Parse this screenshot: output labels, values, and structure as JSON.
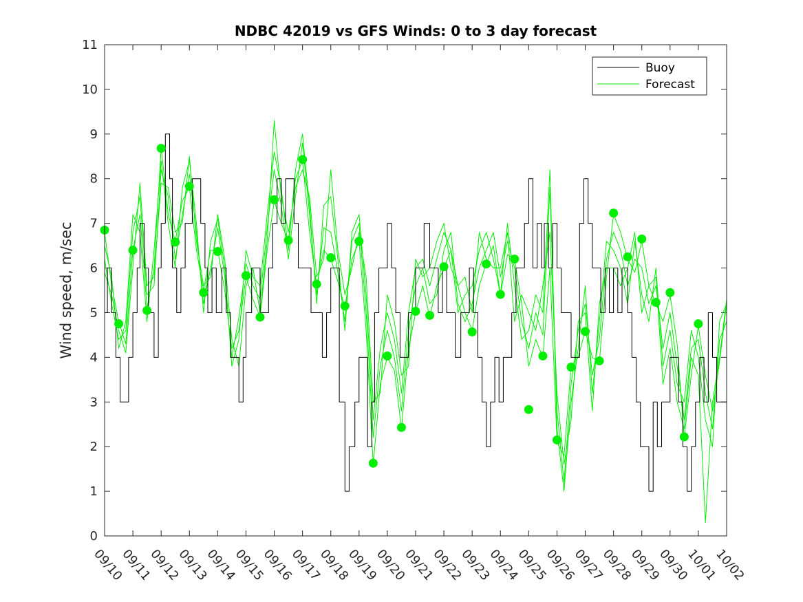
{
  "chart_data": {
    "type": "line",
    "title": "NDBC 42019 vs GFS Winds: 0 to 3 day forecast",
    "xlabel": "",
    "ylabel": "Wind speed, m/sec",
    "xlim": [
      0,
      22
    ],
    "ylim": [
      0,
      11
    ],
    "yticks": [
      0,
      1,
      2,
      3,
      4,
      5,
      6,
      7,
      8,
      9,
      10,
      11
    ],
    "xtick_labels": [
      "09/10",
      "09/11",
      "09/12",
      "09/13",
      "09/14",
      "09/15",
      "09/16",
      "09/17",
      "09/18",
      "09/19",
      "09/20",
      "09/21",
      "09/22",
      "09/23",
      "09/24",
      "09/25",
      "09/26",
      "09/27",
      "09/28",
      "09/29",
      "09/30",
      "10/01",
      "10/02"
    ],
    "legend": {
      "location": "top-right",
      "entries": [
        {
          "label": "Buoy",
          "color": "#000000"
        },
        {
          "label": "Forecast",
          "color": "#00ee00"
        }
      ]
    },
    "series": [
      {
        "name": "Buoy",
        "type": "step",
        "color": "#000000",
        "x": [
          0,
          0.1,
          0.25,
          0.4,
          0.55,
          0.7,
          0.85,
          1.0,
          1.15,
          1.25,
          1.4,
          1.55,
          1.75,
          1.9,
          2.0,
          2.15,
          2.3,
          2.4,
          2.55,
          2.7,
          2.85,
          3.0,
          3.1,
          3.25,
          3.4,
          3.55,
          3.65,
          3.8,
          3.95,
          4.15,
          4.3,
          4.45,
          4.6,
          4.75,
          4.9,
          5.0,
          5.2,
          5.35,
          5.5,
          5.65,
          5.8,
          5.95,
          6.1,
          6.25,
          6.4,
          6.55,
          6.7,
          6.85,
          7.0,
          7.15,
          7.3,
          7.45,
          7.55,
          7.7,
          7.85,
          8.0,
          8.15,
          8.3,
          8.5,
          8.65,
          8.85,
          9.0,
          9.15,
          9.3,
          9.45,
          9.55,
          9.7,
          9.85,
          10.0,
          10.15,
          10.3,
          10.45,
          10.6,
          10.75,
          10.9,
          11.0,
          11.15,
          11.3,
          11.5,
          11.65,
          11.8,
          11.95,
          12.1,
          12.25,
          12.4,
          12.6,
          12.75,
          12.9,
          13.05,
          13.2,
          13.35,
          13.5,
          13.65,
          13.8,
          13.95,
          14.1,
          14.25,
          14.4,
          14.55,
          14.7,
          14.85,
          15.0,
          15.15,
          15.3,
          15.45,
          15.55,
          15.7,
          15.85,
          16.0,
          16.15,
          16.3,
          16.5,
          16.65,
          16.8,
          16.95,
          17.1,
          17.25,
          17.4,
          17.55,
          17.7,
          17.85,
          18.0,
          18.15,
          18.3,
          18.5,
          18.65,
          18.8,
          18.95,
          19.1,
          19.25,
          19.4,
          19.55,
          19.7,
          19.85,
          20.0,
          20.15,
          20.3,
          20.45,
          20.6,
          20.75,
          20.9,
          21.05,
          21.2,
          21.35,
          21.5,
          21.65,
          21.8,
          22.0
        ],
        "y": [
          5,
          6,
          5,
          4,
          3,
          3,
          4,
          5,
          6,
          7,
          6,
          5,
          4,
          6,
          7,
          9,
          8,
          6,
          5,
          6,
          7,
          7,
          8,
          8,
          7,
          6,
          5,
          6,
          5,
          6,
          5,
          4,
          4,
          3,
          4,
          5,
          6,
          6,
          5,
          5,
          6,
          7,
          8,
          7,
          8,
          8,
          7,
          6,
          6,
          6,
          5,
          5,
          5,
          4,
          5,
          6,
          6,
          3,
          1,
          2,
          3,
          4,
          4,
          2,
          3,
          5,
          6,
          6,
          7,
          6,
          5,
          4,
          4,
          5,
          5,
          6,
          6,
          7,
          6,
          6,
          5,
          6,
          5,
          5,
          4,
          5,
          5,
          6,
          5,
          4,
          3,
          2,
          3,
          4,
          3,
          4,
          4,
          5,
          6,
          6,
          7,
          8,
          6,
          7,
          6,
          7,
          6,
          7,
          6,
          5,
          5,
          4,
          4,
          7,
          8,
          7,
          6,
          6,
          5,
          6,
          5,
          6,
          5,
          6,
          5,
          4,
          3,
          2,
          2,
          1,
          3,
          2,
          3,
          3,
          4,
          4,
          3,
          2,
          1,
          2,
          3,
          4,
          3,
          5,
          4,
          3,
          3,
          3
        ]
      },
      {
        "name": "Forecast (day 0)",
        "color": "#00ee00",
        "x": [
          0,
          0.25,
          0.5,
          0.75,
          1.0,
          1.25,
          1.5,
          1.75,
          2.0,
          2.25,
          2.5,
          2.75,
          3.0,
          3.25,
          3.5,
          3.75,
          4.0,
          4.25,
          4.5,
          4.75,
          5.0,
          5.25,
          5.5,
          5.75,
          6.0,
          6.25,
          6.5,
          6.75,
          7.0,
          7.25,
          7.5,
          7.75,
          8.0,
          8.25,
          8.5,
          8.75,
          9.0,
          9.25,
          9.5,
          9.75,
          10.0,
          10.25,
          10.5,
          10.75,
          11.0,
          11.25,
          11.5,
          11.75,
          12.0,
          12.25,
          12.5,
          12.75,
          13.0,
          13.25,
          13.5,
          13.75,
          14.0,
          14.25,
          14.5,
          14.75,
          15.0,
          15.25,
          15.5,
          15.75,
          16.0,
          16.25,
          16.5,
          16.75,
          17.0,
          17.25,
          17.5,
          17.75,
          18.0,
          18.25,
          18.5,
          18.75,
          19.0,
          19.25,
          19.5,
          19.75,
          20.0,
          20.25,
          20.5,
          20.75,
          21.0,
          21.25,
          21.5,
          21.75,
          22.0
        ],
        "y": [
          6.8,
          5.6,
          4.8,
          4.3,
          6.4,
          7.2,
          5.1,
          6.0,
          8.7,
          7.2,
          6.6,
          7.5,
          7.8,
          6.4,
          5.5,
          6.4,
          6.4,
          5.5,
          4.2,
          4.6,
          5.8,
          5.3,
          4.9,
          6.4,
          7.5,
          7.0,
          6.6,
          8.0,
          8.4,
          6.8,
          5.6,
          6.4,
          6.2,
          5.7,
          5.1,
          6.2,
          6.6,
          4.6,
          1.6,
          3.4,
          4.0,
          3.7,
          2.4,
          4.2,
          5.0,
          5.6,
          4.9,
          5.6,
          6.0,
          6.4,
          5.6,
          5.0,
          4.6,
          5.6,
          6.1,
          6.5,
          5.4,
          6.3,
          6.2,
          5.2,
          3.8,
          4.4,
          4.0,
          6.0,
          2.1,
          1.8,
          3.8,
          4.0,
          4.6,
          4.0,
          3.9,
          5.8,
          7.2,
          6.8,
          6.2,
          5.9,
          6.6,
          5.6,
          5.2,
          4.8,
          5.4,
          4.3,
          2.2,
          3.6,
          4.7,
          3.6,
          2.8,
          3.9,
          5.2
        ]
      },
      {
        "name": "Forecast (day 1)",
        "color": "#00ee00",
        "x": [
          0,
          0.25,
          0.5,
          0.75,
          1.0,
          1.25,
          1.5,
          1.75,
          2.0,
          2.25,
          2.5,
          2.75,
          3.0,
          3.25,
          3.5,
          3.75,
          4.0,
          4.25,
          4.5,
          4.75,
          5.0,
          5.25,
          5.5,
          5.75,
          6.0,
          6.25,
          6.5,
          6.75,
          7.0,
          7.25,
          7.5,
          7.75,
          8.0,
          8.25,
          8.5,
          8.75,
          9.0,
          9.25,
          9.5,
          9.75,
          10.0,
          10.25,
          10.5,
          10.75,
          11.0,
          11.25,
          11.5,
          11.75,
          12.0,
          12.25,
          12.5,
          12.75,
          13.0,
          13.25,
          13.5,
          13.75,
          14.0,
          14.25,
          14.5,
          14.75,
          15.0,
          15.25,
          15.5,
          15.75,
          16.0,
          16.25,
          16.5,
          16.75,
          17.0,
          17.25,
          17.5,
          17.75,
          18.0,
          18.25,
          18.5,
          18.75,
          19.0,
          19.25,
          19.5,
          19.75,
          20.0,
          20.25,
          20.5,
          20.75,
          21.0,
          21.25,
          21.5,
          21.75,
          22.0
        ],
        "y": [
          6.2,
          5.2,
          4.4,
          4.6,
          6.8,
          7.6,
          5.4,
          5.6,
          8.2,
          7.6,
          6.2,
          7.2,
          8.1,
          6.8,
          5.2,
          6.0,
          6.9,
          5.8,
          4.0,
          4.9,
          6.1,
          5.6,
          5.3,
          6.9,
          8.2,
          7.4,
          6.2,
          7.6,
          8.8,
          7.2,
          5.4,
          6.9,
          6.8,
          5.9,
          4.8,
          6.6,
          7.0,
          5.0,
          2.2,
          3.8,
          4.6,
          4.0,
          2.8,
          4.6,
          5.6,
          6.0,
          5.2,
          5.4,
          6.4,
          6.8,
          5.2,
          4.8,
          5.2,
          6.0,
          6.4,
          6.8,
          5.8,
          6.6,
          6.0,
          4.8,
          4.2,
          5.0,
          4.5,
          7.8,
          2.8,
          1.2,
          3.4,
          4.6,
          5.2,
          3.6,
          4.4,
          6.2,
          6.8,
          6.4,
          5.6,
          6.2,
          6.0,
          5.2,
          5.6,
          4.2,
          5.0,
          3.8,
          2.6,
          4.2,
          4.4,
          3.2,
          2.4,
          4.4,
          4.8
        ]
      },
      {
        "name": "Forecast (day 2)",
        "color": "#00ee00",
        "x": [
          0,
          0.25,
          0.5,
          0.75,
          1.0,
          1.25,
          1.5,
          1.75,
          2.0,
          2.25,
          2.5,
          2.75,
          3.0,
          3.25,
          3.5,
          3.75,
          4.0,
          4.25,
          4.5,
          4.75,
          5.0,
          5.25,
          5.5,
          5.75,
          6.0,
          6.25,
          6.5,
          6.75,
          7.0,
          7.25,
          7.5,
          7.75,
          8.0,
          8.25,
          8.5,
          8.75,
          9.0,
          9.25,
          9.5,
          9.75,
          10.0,
          10.25,
          10.5,
          10.75,
          11.0,
          11.25,
          11.5,
          11.75,
          12.0,
          12.25,
          12.5,
          12.75,
          13.0,
          13.25,
          13.5,
          13.75,
          14.0,
          14.25,
          14.5,
          14.75,
          15.0,
          15.25,
          15.5,
          15.75,
          16.0,
          16.25,
          16.5,
          16.75,
          17.0,
          17.25,
          17.5,
          17.75,
          18.0,
          18.25,
          18.5,
          18.75,
          19.0,
          19.25,
          19.5,
          19.75,
          20.0,
          20.25,
          20.5,
          20.75,
          21.0,
          21.25,
          21.5,
          21.75,
          22.0
        ],
        "y": [
          6.5,
          5.8,
          4.2,
          4.8,
          7.2,
          6.8,
          4.8,
          6.4,
          8.4,
          7.0,
          6.0,
          7.8,
          8.4,
          7.0,
          5.0,
          6.6,
          7.1,
          6.0,
          3.8,
          4.4,
          6.4,
          5.8,
          5.6,
          7.2,
          8.6,
          7.8,
          6.4,
          8.2,
          9.0,
          7.4,
          5.2,
          7.4,
          7.6,
          6.2,
          4.6,
          6.8,
          7.2,
          5.4,
          2.6,
          4.2,
          5.0,
          4.4,
          3.2,
          5.0,
          6.0,
          6.2,
          5.6,
          6.2,
          6.8,
          6.4,
          5.0,
          5.4,
          5.6,
          6.4,
          6.8,
          6.2,
          5.4,
          7.0,
          5.6,
          4.4,
          4.6,
          5.4,
          5.0,
          8.2,
          2.4,
          1.0,
          3.0,
          4.2,
          5.6,
          3.2,
          4.8,
          6.6,
          6.4,
          6.0,
          5.2,
          6.6,
          5.4,
          4.8,
          6.0,
          3.8,
          4.6,
          3.4,
          3.0,
          4.6,
          4.0,
          2.6,
          2.0,
          4.8,
          5.2
        ]
      },
      {
        "name": "Forecast (day 3)",
        "color": "#00ee00",
        "x": [
          0,
          0.25,
          0.5,
          0.75,
          1.0,
          1.25,
          1.5,
          1.75,
          2.0,
          2.25,
          2.5,
          2.75,
          3.0,
          3.25,
          3.5,
          3.75,
          4.0,
          4.25,
          4.5,
          4.75,
          5.0,
          5.25,
          5.5,
          5.75,
          6.0,
          6.25,
          6.5,
          6.75,
          7.0,
          7.25,
          7.5,
          7.75,
          8.0,
          8.25,
          8.5,
          8.75,
          9.0,
          9.25,
          9.5,
          9.75,
          10.0,
          10.25,
          10.5,
          10.75,
          11.0,
          11.25,
          11.5,
          11.75,
          12.0,
          12.25,
          12.5,
          12.75,
          13.0,
          13.25,
          13.5,
          13.75,
          14.0,
          14.25,
          14.5,
          14.75,
          15.0,
          15.25,
          15.5,
          15.75,
          16.0,
          16.25,
          16.5,
          16.75,
          17.0,
          17.25,
          17.5,
          17.75,
          18.0,
          18.25,
          18.5,
          18.75,
          19.0,
          19.25,
          19.5,
          19.75,
          20.0,
          20.25,
          20.5,
          20.75,
          21.0,
          21.25,
          21.5,
          21.75,
          22.0
        ],
        "y": [
          5.9,
          5.4,
          4.6,
          4.1,
          6.0,
          7.9,
          5.6,
          5.8,
          7.9,
          7.8,
          6.8,
          7.0,
          8.5,
          6.6,
          5.6,
          5.8,
          7.2,
          6.2,
          4.4,
          3.8,
          5.6,
          6.0,
          5.0,
          6.6,
          9.3,
          7.6,
          6.8,
          7.8,
          8.2,
          7.6,
          5.8,
          6.2,
          8.2,
          6.4,
          5.4,
          6.0,
          6.8,
          5.8,
          3.0,
          3.2,
          5.4,
          4.8,
          3.6,
          3.8,
          6.2,
          5.8,
          6.0,
          6.6,
          7.0,
          6.0,
          5.6,
          5.8,
          5.0,
          6.8,
          6.2,
          6.0,
          6.0,
          6.8,
          4.8,
          5.4,
          5.0,
          4.6,
          5.6,
          6.8,
          3.2,
          1.6,
          2.6,
          4.8,
          5.0,
          2.8,
          5.2,
          6.0,
          6.0,
          5.6,
          6.0,
          6.8,
          5.0,
          5.6,
          5.8,
          3.4,
          4.2,
          3.0,
          2.4,
          4.0,
          3.6,
          0.3,
          3.0,
          4.0,
          5.3
        ]
      }
    ],
    "daily_points": {
      "name": "Forecast (daily markers)",
      "color": "#00ee00",
      "x": [
        0,
        0.5,
        1.0,
        1.5,
        2.0,
        2.5,
        3.0,
        3.5,
        4.0,
        4.5,
        5.0,
        5.5,
        6.0,
        6.5,
        7.0,
        7.5,
        8.0,
        8.5,
        9.0,
        9.5,
        10.0,
        10.5,
        11.0,
        11.5,
        12.0,
        12.5,
        13.0,
        13.5,
        14.0,
        14.5,
        15.0,
        15.5,
        16.0,
        16.5,
        17.0,
        17.5,
        18.0,
        18.5,
        19.0,
        19.5,
        20.0,
        20.5,
        21.0
      ],
      "y": [
        6.85,
        4.75,
        6.4,
        5.05,
        8.68,
        6.58,
        7.83,
        5.45,
        6.37,
        null,
        5.83,
        4.9,
        7.53,
        6.62,
        8.43,
        5.64,
        6.23,
        5.15,
        6.6,
        1.63,
        4.03,
        2.43,
        5.03,
        4.94,
        6.03,
        null,
        4.57,
        6.09,
        5.41,
        6.2,
        2.83,
        4.03,
        2.15,
        3.78,
        4.58,
        3.92,
        7.23,
        6.25,
        6.65,
        5.23,
        5.45,
        2.22,
        4.75
      ]
    }
  }
}
